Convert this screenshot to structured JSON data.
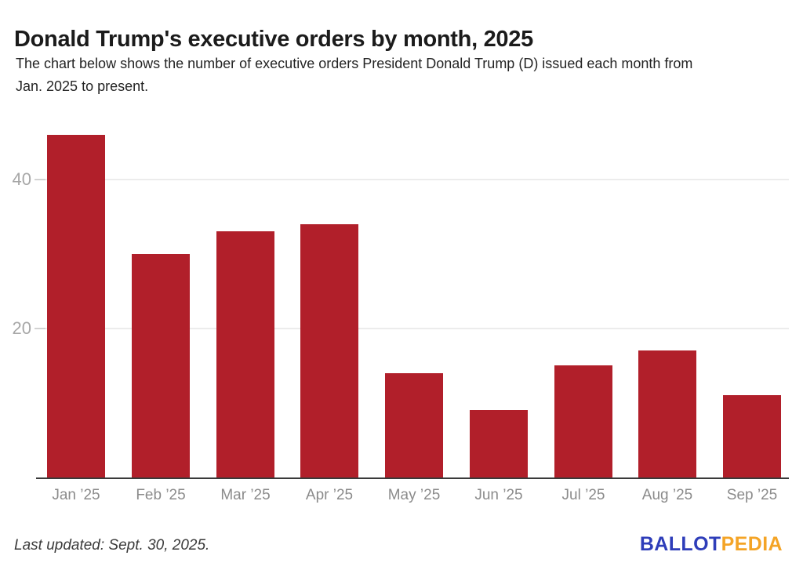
{
  "header": {
    "title": "Donald Trump's executive orders by month, 2025",
    "subtitle_line1": "The chart below shows the number of executive orders President Donald Trump (D) issued each month from",
    "subtitle_line2": "Jan. 2025 to present."
  },
  "chart_data": {
    "type": "bar",
    "title": "Donald Trump's executive orders by month, 2025",
    "categories": [
      "Jan ’25",
      "Feb ’25",
      "Mar ’25",
      "Apr ’25",
      "May ’25",
      "Jun ’25",
      "Jul ’25",
      "Aug ’25",
      "Sep ’25"
    ],
    "values": [
      46,
      30,
      33,
      34,
      14,
      9,
      15,
      17,
      11
    ],
    "xlabel": "",
    "ylabel": "",
    "yticks": [
      20,
      40
    ],
    "ylim": [
      0,
      48
    ],
    "legend": "none",
    "grid": "horizontal",
    "bar_color": "#b11f2a"
  },
  "footer": {
    "last_updated": "Last updated: Sept. 30, 2025.",
    "logo_part1": "BALLOT",
    "logo_part2": "PEDIA"
  },
  "colors": {
    "bar": "#b11f2a",
    "logo_blue": "#2e3db9",
    "logo_orange": "#f4a426",
    "title_text": "#1b1b1b",
    "axis_label": "#a7a7a7"
  }
}
